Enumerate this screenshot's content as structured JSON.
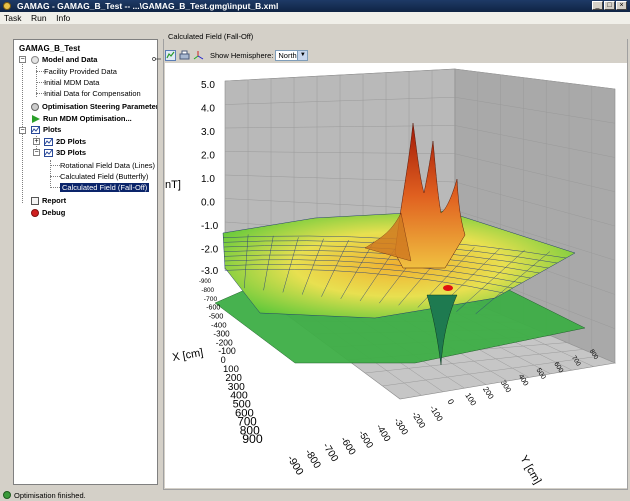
{
  "window": {
    "title": "GAMAG - GAMAG_B_Test -- ...\\GAMAG_B_Test.gmg\\input_B.xml",
    "minimize": "_",
    "maximize": "□",
    "close": "×"
  },
  "menu": [
    "Task",
    "Run",
    "Info"
  ],
  "tree": {
    "root": "GAMAG_B_Test",
    "model_and_data": "Model and Data",
    "facility_data": "Facility Provided Data",
    "initial_mdm": "Initial MDM Data",
    "initial_comp": "Initial Data for Compensation",
    "opt_params": "Optimisation Steering Parameters",
    "run_mdm": "Run MDM Optimisation...",
    "plots": "Plots",
    "plots_2d": "2D Plots",
    "plots_3d": "3D Plots",
    "rot_field": "Rotational Field Data (Lines)",
    "calc_butterfly": "Calculated Field (Butterfly)",
    "calc_falloff": "Calculated Field (Fall-Off)",
    "report": "Report",
    "debug": "Debug"
  },
  "panel": {
    "title": "Calculated Field (Fall-Off)",
    "hemisphere_label": "Show Hemisphere:",
    "hemisphere_value": "North"
  },
  "plot": {
    "z_axis_label": "nT]",
    "z_ticks": [
      "5.0",
      "4.0",
      "3.0",
      "2.0",
      "1.0",
      "0.0",
      "-1.0",
      "-2.0",
      "-3.0"
    ],
    "x_axis_label": "X [cm]",
    "x_ticks": [
      "-900",
      "-800",
      "-700",
      "-600",
      "-500",
      "-400",
      "-300",
      "-200",
      "-100",
      "0",
      "100",
      "200",
      "300",
      "400",
      "500",
      "600",
      "700",
      "800",
      "900"
    ],
    "y_axis_label": "Y [cm]",
    "y_ticks": [
      "-900",
      "-800",
      "-700",
      "-600",
      "-500",
      "-400",
      "-300",
      "-200",
      "-100",
      "0",
      "100",
      "200",
      "300",
      "400",
      "500",
      "600",
      "700",
      "800"
    ]
  },
  "status": {
    "text": "Optimisation finished."
  }
}
